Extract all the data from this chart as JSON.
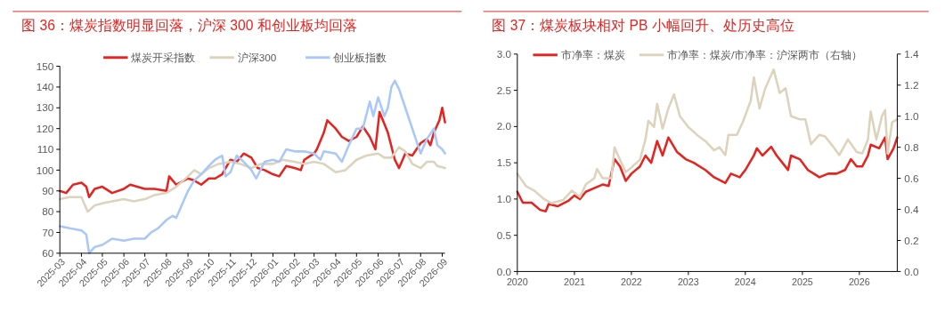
{
  "chart_data": [
    {
      "type": "line",
      "title": "图 36：煤炭指数明显回落，沪深 300 和创业板均回落",
      "legend": "top",
      "line_style": "solid",
      "marker": "none",
      "grid": false,
      "xlim": [
        "2025-03-01",
        "2026-09-05"
      ],
      "xticks": [
        "2025-03",
        "2025-04",
        "2025-05",
        "2025-06",
        "2025-07",
        "2025-08",
        "2025-09",
        "2025-10",
        "2025-11",
        "2025-12",
        "2026-01",
        "2026-02",
        "2026-03",
        "2026-04",
        "2026-05",
        "2026-06",
        "2026-07",
        "2026-08",
        "2026-09"
      ],
      "ylim": [
        60,
        150
      ],
      "yticks": [
        60,
        70,
        80,
        90,
        100,
        110,
        120,
        130,
        140,
        150
      ],
      "series": [
        {
          "name": "煤炭开采指数",
          "color": "#e52420",
          "x": [
            "2025-03-01",
            "2025-03-10",
            "2025-03-20",
            "2025-04-01",
            "2025-04-08",
            "2025-04-12",
            "2025-04-20",
            "2025-05-01",
            "2025-05-15",
            "2025-06-01",
            "2025-06-10",
            "2025-06-20",
            "2025-07-01",
            "2025-07-15",
            "2025-08-01",
            "2025-08-05",
            "2025-08-15",
            "2025-09-01",
            "2025-09-10",
            "2025-09-20",
            "2025-10-01",
            "2025-10-10",
            "2025-10-20",
            "2025-11-01",
            "2025-11-10",
            "2025-11-20",
            "2025-12-01",
            "2025-12-10",
            "2025-12-20",
            "2026-01-01",
            "2026-01-10",
            "2026-01-20",
            "2026-02-01",
            "2026-02-10",
            "2026-02-15",
            "2026-03-01",
            "2026-03-05",
            "2026-03-15",
            "2026-03-20",
            "2026-04-01",
            "2026-04-10",
            "2026-04-20",
            "2026-05-01",
            "2026-05-10",
            "2026-05-20",
            "2026-05-28",
            "2026-06-03",
            "2026-06-15",
            "2026-06-25",
            "2026-07-01",
            "2026-07-10",
            "2026-07-20",
            "2026-08-01",
            "2026-08-10",
            "2026-08-15",
            "2026-08-20",
            "2026-08-28",
            "2026-09-01",
            "2026-09-05"
          ],
          "values": [
            90,
            89,
            93,
            94,
            92,
            87,
            91,
            92,
            89,
            91,
            93,
            92,
            91,
            91,
            90,
            97,
            93,
            96,
            95,
            93,
            96,
            96,
            98,
            105,
            104,
            108,
            106,
            101,
            100,
            98,
            97,
            102,
            101,
            100,
            105,
            108,
            110,
            118,
            124,
            120,
            116,
            114,
            116,
            121,
            116,
            110,
            128,
            118,
            105,
            101,
            108,
            107,
            113,
            115,
            112,
            118,
            124,
            130,
            123
          ]
        },
        {
          "name": "沪深300",
          "color": "#ddd3bc",
          "x": [
            "2025-03-01",
            "2025-03-15",
            "2025-04-01",
            "2025-04-10",
            "2025-04-20",
            "2025-05-01",
            "2025-05-15",
            "2025-06-01",
            "2025-06-15",
            "2025-07-01",
            "2025-07-15",
            "2025-08-01",
            "2025-08-15",
            "2025-09-01",
            "2025-09-10",
            "2025-09-20",
            "2025-10-01",
            "2025-10-15",
            "2025-11-01",
            "2025-11-15",
            "2025-12-01",
            "2025-12-15",
            "2026-01-01",
            "2026-01-15",
            "2026-02-01",
            "2026-02-15",
            "2026-03-01",
            "2026-03-15",
            "2026-04-01",
            "2026-04-15",
            "2026-05-01",
            "2026-05-15",
            "2026-06-01",
            "2026-06-10",
            "2026-06-20",
            "2026-07-01",
            "2026-07-10",
            "2026-07-20",
            "2026-08-01",
            "2026-08-10",
            "2026-08-20",
            "2026-08-25",
            "2026-09-05"
          ],
          "values": [
            86,
            87,
            87,
            80,
            83,
            84,
            85,
            86,
            85,
            86,
            88,
            89,
            92,
            97,
            100,
            98,
            101,
            103,
            104,
            103,
            101,
            103,
            103,
            105,
            104,
            103,
            104,
            103,
            99,
            100,
            105,
            107,
            108,
            106,
            106,
            111,
            109,
            103,
            101,
            104,
            104,
            102,
            101
          ]
        },
        {
          "name": "创业板指数",
          "color": "#a9c8f8",
          "x": [
            "2025-03-01",
            "2025-03-15",
            "2025-04-01",
            "2025-04-08",
            "2025-04-12",
            "2025-04-20",
            "2025-05-01",
            "2025-05-15",
            "2025-06-01",
            "2025-06-15",
            "2025-07-01",
            "2025-07-10",
            "2025-07-20",
            "2025-08-01",
            "2025-08-10",
            "2025-08-15",
            "2025-09-01",
            "2025-09-10",
            "2025-09-20",
            "2025-10-01",
            "2025-10-10",
            "2025-10-20",
            "2025-10-25",
            "2025-11-01",
            "2025-11-10",
            "2025-11-20",
            "2025-12-01",
            "2025-12-08",
            "2025-12-20",
            "2026-01-01",
            "2026-01-10",
            "2026-01-20",
            "2026-02-01",
            "2026-02-15",
            "2026-03-01",
            "2026-03-10",
            "2026-03-15",
            "2026-04-01",
            "2026-04-10",
            "2026-04-20",
            "2026-05-01",
            "2026-05-10",
            "2026-05-20",
            "2026-05-25",
            "2026-06-01",
            "2026-06-10",
            "2026-06-15",
            "2026-06-20",
            "2026-06-25",
            "2026-07-01",
            "2026-07-10",
            "2026-07-20",
            "2026-08-01",
            "2026-08-10",
            "2026-08-20",
            "2026-08-25",
            "2026-09-01",
            "2026-09-05"
          ],
          "values": [
            73,
            72,
            71,
            69,
            60,
            63,
            64,
            67,
            66,
            67,
            67,
            70,
            72,
            76,
            78,
            77,
            90,
            95,
            98,
            102,
            105,
            107,
            97,
            99,
            107,
            104,
            100,
            96,
            104,
            105,
            104,
            110,
            109,
            109,
            108,
            105,
            109,
            108,
            104,
            112,
            120,
            120,
            133,
            126,
            135,
            126,
            130,
            140,
            143,
            139,
            130,
            120,
            108,
            115,
            120,
            112,
            110,
            108
          ]
        }
      ]
    },
    {
      "type": "line",
      "title": "图 37：煤炭板块相对 PB 小幅回升、处历史高位",
      "legend": "top",
      "line_style": "solid",
      "marker": "none",
      "grid": false,
      "xlim": [
        "2020-01-01",
        "2026-09-01"
      ],
      "xticks": [
        "2020",
        "2021",
        "2022",
        "2023",
        "2024",
        "2025",
        "2026"
      ],
      "ylim": [
        0,
        3
      ],
      "yticks": [
        {
          "value": 0,
          "label": "0.0"
        },
        {
          "value": 0.5,
          "label": "0.5"
        },
        {
          "value": 1,
          "label": "1.0"
        },
        {
          "value": 1.5,
          "label": "1.5"
        },
        {
          "value": 2,
          "label": "2.0"
        },
        {
          "value": 2.5,
          "label": "2.5"
        },
        {
          "value": 3,
          "label": "3.0"
        }
      ],
      "y2lim": [
        0,
        1.4
      ],
      "y2ticks": [
        {
          "value": 0,
          "label": "0.0"
        },
        0.2,
        0.4,
        0.6,
        0.8,
        {
          "value": 1,
          "label": "1.0"
        },
        1.2,
        1.4
      ],
      "series": [
        {
          "name": "市净率：煤炭",
          "color": "#e52420",
          "x": [
            "2020-01-01",
            "2020-02-05",
            "2020-04-01",
            "2020-05-26",
            "2020-07-01",
            "2020-07-20",
            "2020-09-15",
            "2020-11-26",
            "2021-01-01",
            "2021-02-05",
            "2021-03-15",
            "2021-05-08",
            "2021-07-01",
            "2021-08-08",
            "2021-09-15",
            "2021-10-20",
            "2021-11-26",
            "2022-01-01",
            "2022-02-25",
            "2022-04-01",
            "2022-05-08",
            "2022-06-15",
            "2022-07-20",
            "2022-08-26",
            "2022-10-20",
            "2022-12-15",
            "2023-02-05",
            "2023-04-20",
            "2023-06-15",
            "2023-08-26",
            "2023-10-01",
            "2023-11-26",
            "2024-01-01",
            "2024-02-25",
            "2024-03-15",
            "2024-04-20",
            "2024-06-15",
            "2024-07-20",
            "2024-08-26",
            "2024-10-01",
            "2024-10-20",
            "2024-12-15",
            "2025-02-05",
            "2025-03-15",
            "2025-04-20",
            "2025-06-15",
            "2025-08-08",
            "2025-10-01",
            "2025-11-08",
            "2025-12-15",
            "2026-01-20",
            "2026-02-25",
            "2026-03-15",
            "2026-05-08",
            "2026-06-15",
            "2026-07-01",
            "2026-08-08",
            "2026-09-01"
          ],
          "values": [
            1.1,
            0.95,
            0.95,
            0.85,
            0.83,
            0.93,
            0.9,
            0.98,
            1.05,
            1,
            1.1,
            1.15,
            1.2,
            1.18,
            1.55,
            1.45,
            1.25,
            1.35,
            1.45,
            1.6,
            1.5,
            1.8,
            1.6,
            1.85,
            1.65,
            1.55,
            1.5,
            1.4,
            1.3,
            1.22,
            1.35,
            1.3,
            1.4,
            1.6,
            1.7,
            1.6,
            1.72,
            1.6,
            1.5,
            1.4,
            1.6,
            1.55,
            1.4,
            1.35,
            1.3,
            1.35,
            1.35,
            1.4,
            1.55,
            1.45,
            1.45,
            1.6,
            1.75,
            1.7,
            1.85,
            1.55,
            1.7,
            1.85
          ]
        },
        {
          "name": "市净率：煤炭/市净率：沪深两市（右轴）",
          "color": "#ddd3bc",
          "axis": "y2",
          "x": [
            "2020-01-01",
            "2020-02-25",
            "2020-04-20",
            "2020-06-15",
            "2020-08-08",
            "2020-10-20",
            "2020-12-15",
            "2021-02-05",
            "2021-03-15",
            "2021-05-08",
            "2021-05-26",
            "2021-07-01",
            "2021-08-26",
            "2021-09-15",
            "2021-10-20",
            "2021-11-26",
            "2022-01-01",
            "2022-02-25",
            "2022-04-01",
            "2022-04-20",
            "2022-05-26",
            "2022-06-15",
            "2022-07-20",
            "2022-08-26",
            "2022-10-01",
            "2022-11-08",
            "2023-01-01",
            "2023-02-25",
            "2023-04-20",
            "2023-06-15",
            "2023-07-20",
            "2023-08-26",
            "2023-09-15",
            "2023-11-08",
            "2023-12-15",
            "2024-02-05",
            "2024-02-25",
            "2024-04-01",
            "2024-05-08",
            "2024-07-01",
            "2024-08-08",
            "2024-09-15",
            "2024-10-20",
            "2024-12-15",
            "2025-01-20",
            "2025-02-25",
            "2025-04-20",
            "2025-05-26",
            "2025-07-20",
            "2025-08-26",
            "2025-10-20",
            "2025-12-15",
            "2026-01-20",
            "2026-02-25",
            "2026-03-15",
            "2026-04-20",
            "2026-05-26",
            "2026-06-15",
            "2026-07-01",
            "2026-07-30",
            "2026-09-01"
          ],
          "values": [
            0.63,
            0.55,
            0.52,
            0.47,
            0.44,
            0.46,
            0.52,
            0.48,
            0.56,
            0.6,
            0.66,
            0.6,
            0.6,
            0.8,
            0.72,
            0.64,
            0.67,
            0.72,
            0.85,
            0.97,
            0.93,
            1.08,
            0.92,
            1.05,
            1.14,
            1,
            0.93,
            0.88,
            0.84,
            0.78,
            0.8,
            0.75,
            0.88,
            0.88,
            0.96,
            1.1,
            1.25,
            1.05,
            1.18,
            1.3,
            1.15,
            1.18,
            1,
            0.98,
            0.98,
            0.82,
            0.88,
            0.87,
            0.8,
            0.75,
            0.85,
            0.77,
            0.76,
            0.85,
            1.03,
            0.85,
            1,
            1.04,
            0.76,
            0.96,
            0.98
          ]
        }
      ]
    }
  ]
}
